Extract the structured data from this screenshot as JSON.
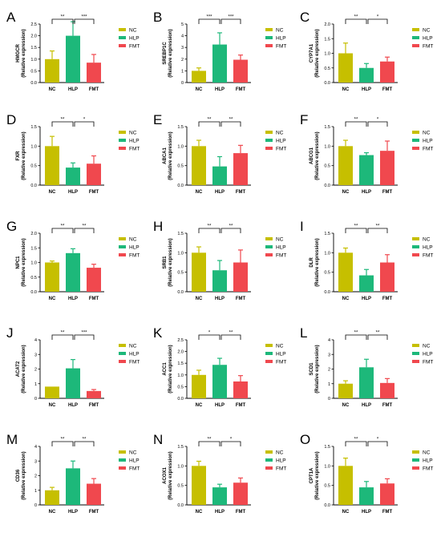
{
  "legend": [
    "NC",
    "HLP",
    "FMT"
  ],
  "colors": [
    "#c6bf00",
    "#1db87a",
    "#f0484e"
  ],
  "chart_data": [
    {
      "panel": "A",
      "type": "bar",
      "ylabel": "HMGCR",
      "ylabel2": "(Relative expression)",
      "categories": [
        "NC",
        "HLP",
        "FMT"
      ],
      "values": [
        1.0,
        2.0,
        0.85
      ],
      "errors": [
        0.35,
        0.6,
        0.35
      ],
      "yticks": [
        "0.0",
        "0.5",
        "1.0",
        "1.5",
        "2.0",
        "2.5"
      ],
      "ylim": [
        0,
        2.5
      ],
      "sig": [
        "**",
        "***"
      ]
    },
    {
      "panel": "B",
      "type": "bar",
      "ylabel": "SREBP1C",
      "ylabel2": "(Relative expression)",
      "categories": [
        "NC",
        "HLP",
        "FMT"
      ],
      "values": [
        1.0,
        3.25,
        1.95
      ],
      "errors": [
        0.25,
        1.0,
        0.4
      ],
      "yticks": [
        "0",
        "1",
        "2",
        "3",
        "4",
        "5"
      ],
      "ylim": [
        0,
        5
      ],
      "sig": [
        "***",
        "***"
      ]
    },
    {
      "panel": "C",
      "type": "bar",
      "ylabel": "CYP7A1",
      "ylabel2": "(Relative expression)",
      "categories": [
        "NC",
        "HLP",
        "FMT"
      ],
      "values": [
        1.0,
        0.5,
        0.72
      ],
      "errors": [
        0.35,
        0.15,
        0.15
      ],
      "yticks": [
        "0.0",
        "0.5",
        "1.0",
        "1.5",
        "2.0"
      ],
      "ylim": [
        0,
        2.0
      ],
      "sig": [
        "**",
        "*"
      ]
    },
    {
      "panel": "D",
      "type": "bar",
      "ylabel": "FXR",
      "ylabel2": "(Relative expression)",
      "categories": [
        "NC",
        "HLP",
        "FMT"
      ],
      "values": [
        1.0,
        0.45,
        0.55
      ],
      "errors": [
        0.25,
        0.12,
        0.2
      ],
      "yticks": [
        "0.0",
        "0.5",
        "1.0",
        "1.5"
      ],
      "ylim": [
        0,
        1.5
      ],
      "sig": [
        "**",
        "*"
      ]
    },
    {
      "panel": "E",
      "type": "bar",
      "ylabel": "ABCA1",
      "ylabel2": "(Relative expression)",
      "categories": [
        "NC",
        "HLP",
        "FMT"
      ],
      "values": [
        1.0,
        0.48,
        0.82
      ],
      "errors": [
        0.15,
        0.25,
        0.2
      ],
      "yticks": [
        "0.0",
        "0.5",
        "1.0",
        "1.5"
      ],
      "ylim": [
        0,
        1.5
      ],
      "sig": [
        "**",
        "**"
      ]
    },
    {
      "panel": "F",
      "type": "bar",
      "ylabel": "ABCG1",
      "ylabel2": "(Relative expression)",
      "categories": [
        "NC",
        "HLP",
        "FMT"
      ],
      "values": [
        1.0,
        0.77,
        0.88
      ],
      "errors": [
        0.15,
        0.06,
        0.25
      ],
      "yticks": [
        "0.0",
        "0.5",
        "1.0",
        "1.5"
      ],
      "ylim": [
        0,
        1.5
      ],
      "sig": [
        "**",
        "*"
      ]
    },
    {
      "panel": "G",
      "type": "bar",
      "ylabel": "NPC1",
      "ylabel2": "(Relative expression)",
      "categories": [
        "NC",
        "HLP",
        "FMT"
      ],
      "values": [
        1.0,
        1.32,
        0.82
      ],
      "errors": [
        0.05,
        0.15,
        0.12
      ],
      "yticks": [
        "0.0",
        "0.5",
        "1.0",
        "1.5",
        "2.0"
      ],
      "ylim": [
        0,
        2.0
      ],
      "sig": [
        "**",
        "**"
      ]
    },
    {
      "panel": "H",
      "type": "bar",
      "ylabel": "SRB1",
      "ylabel2": "(Relative expression)",
      "categories": [
        "NC",
        "HLP",
        "FMT"
      ],
      "values": [
        1.0,
        0.55,
        0.75
      ],
      "errors": [
        0.15,
        0.25,
        0.32
      ],
      "yticks": [
        "0.0",
        "0.5",
        "1.0",
        "1.5"
      ],
      "ylim": [
        0,
        1.5
      ],
      "sig": [
        "**",
        "**"
      ]
    },
    {
      "panel": "I",
      "type": "bar",
      "ylabel": "DLR",
      "ylabel2": "(Relative expression)",
      "categories": [
        "NC",
        "HLP",
        "FMT"
      ],
      "values": [
        1.0,
        0.42,
        0.75
      ],
      "errors": [
        0.12,
        0.15,
        0.2
      ],
      "yticks": [
        "0.0",
        "0.5",
        "1.0",
        "1.5"
      ],
      "ylim": [
        0,
        1.5
      ],
      "sig": [
        "**",
        "**"
      ]
    },
    {
      "panel": "J",
      "type": "bar",
      "ylabel": "ACAT2",
      "ylabel2": "(Relative expression)",
      "categories": [
        "NC",
        "HLP",
        "FMT"
      ],
      "values": [
        0.8,
        2.05,
        0.5
      ],
      "errors": [
        0.0,
        0.6,
        0.1
      ],
      "yticks": [
        "0",
        "1",
        "2",
        "3",
        "4"
      ],
      "ylim": [
        0,
        4
      ],
      "sig": [
        "**",
        "***"
      ]
    },
    {
      "panel": "K",
      "type": "bar",
      "ylabel": "ACC1",
      "ylabel2": "(Relative expression)",
      "categories": [
        "NC",
        "HLP",
        "FMT"
      ],
      "values": [
        1.0,
        1.43,
        0.72
      ],
      "errors": [
        0.2,
        0.28,
        0.25
      ],
      "yticks": [
        "0.0",
        "0.5",
        "1.0",
        "1.5",
        "2.0",
        "2.5"
      ],
      "ylim": [
        0,
        2.5
      ],
      "sig": [
        "*",
        "**"
      ]
    },
    {
      "panel": "L",
      "type": "bar",
      "ylabel": "SCD1",
      "ylabel2": "(Relative expression)",
      "categories": [
        "NC",
        "HLP",
        "FMT"
      ],
      "values": [
        1.0,
        2.12,
        1.05
      ],
      "errors": [
        0.2,
        0.55,
        0.3
      ],
      "yticks": [
        "0",
        "1",
        "2",
        "3",
        "4"
      ],
      "ylim": [
        0,
        4
      ],
      "sig": [
        "**",
        "**"
      ]
    },
    {
      "panel": "M",
      "type": "bar",
      "ylabel": "CD36",
      "ylabel2": "(Relative expression)",
      "categories": [
        "NC",
        "HLP",
        "FMT"
      ],
      "values": [
        1.0,
        2.5,
        1.45
      ],
      "errors": [
        0.2,
        0.5,
        0.35
      ],
      "yticks": [
        "0",
        "1",
        "2",
        "3",
        "4"
      ],
      "ylim": [
        0,
        4
      ],
      "sig": [
        "**",
        "**"
      ]
    },
    {
      "panel": "N",
      "type": "bar",
      "ylabel": "ACOX1",
      "ylabel2": "(Relative expression)",
      "categories": [
        "NC",
        "HLP",
        "FMT"
      ],
      "values": [
        1.0,
        0.45,
        0.57
      ],
      "errors": [
        0.12,
        0.08,
        0.12
      ],
      "yticks": [
        "0.0",
        "0.5",
        "1.0",
        "1.5"
      ],
      "ylim": [
        0,
        1.5
      ],
      "sig": [
        "**",
        "*"
      ]
    },
    {
      "panel": "O",
      "type": "bar",
      "ylabel": "CPT1A",
      "ylabel2": "(Relative expression)",
      "categories": [
        "NC",
        "HLP",
        "FMT"
      ],
      "values": [
        1.0,
        0.45,
        0.55
      ],
      "errors": [
        0.2,
        0.15,
        0.12
      ],
      "yticks": [
        "0.0",
        "0.5",
        "1.0",
        "1.5"
      ],
      "ylim": [
        0,
        1.5
      ],
      "sig": [
        "**",
        "*"
      ]
    }
  ]
}
